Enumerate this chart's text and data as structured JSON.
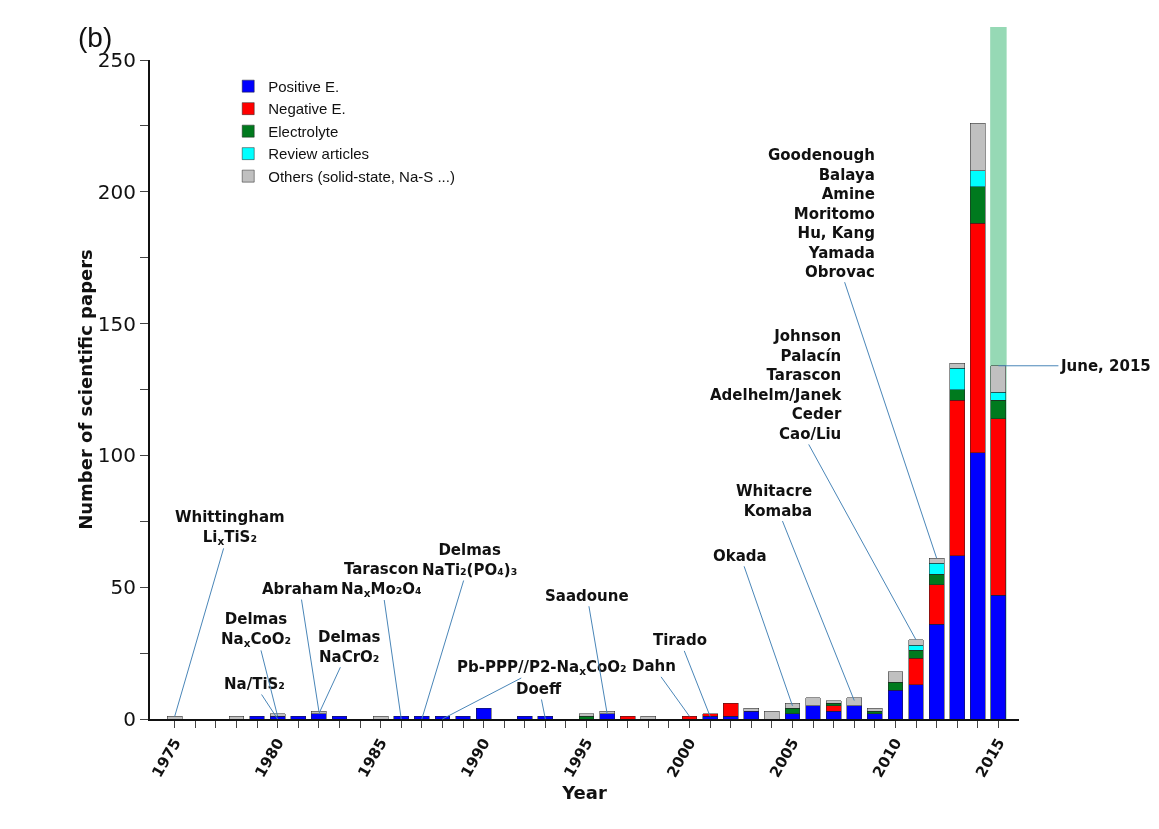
{
  "chart_data": {
    "type": "bar",
    "stacked": true,
    "xlabel": "Year",
    "ylabel": "Number of scientific papers",
    "x": [
      1975,
      1976,
      1977,
      1978,
      1979,
      1980,
      1981,
      1982,
      1983,
      1984,
      1985,
      1986,
      1987,
      1988,
      1989,
      1990,
      1991,
      1992,
      1993,
      1994,
      1995,
      1996,
      1997,
      1998,
      1999,
      2000,
      2001,
      2002,
      2003,
      2004,
      2005,
      2006,
      2007,
      2008,
      2009,
      2010,
      2011,
      2012,
      2013,
      2014,
      2015
    ],
    "series": [
      {
        "name": "Positive E.",
        "color": "#0000ff",
        "values": [
          null,
          null,
          null,
          null,
          1,
          1,
          1,
          2,
          1,
          null,
          null,
          1,
          1,
          1,
          1,
          4,
          null,
          1,
          1,
          null,
          null,
          2,
          null,
          null,
          null,
          null,
          1,
          1,
          3,
          null,
          2,
          5,
          3,
          5,
          2,
          11,
          13,
          36,
          62,
          101,
          47
        ]
      },
      {
        "name": "Negative E.",
        "color": "#ff0000",
        "values": [
          null,
          null,
          null,
          null,
          null,
          null,
          null,
          null,
          null,
          null,
          null,
          null,
          null,
          null,
          null,
          null,
          null,
          null,
          null,
          null,
          null,
          null,
          1,
          null,
          null,
          1,
          1,
          5,
          null,
          null,
          null,
          null,
          2,
          null,
          null,
          null,
          10,
          15,
          59,
          87,
          67
        ]
      },
      {
        "name": "Electrolyte",
        "color": "#007a1e",
        "values": [
          null,
          null,
          null,
          null,
          null,
          null,
          null,
          null,
          null,
          null,
          null,
          null,
          null,
          null,
          null,
          null,
          null,
          null,
          null,
          null,
          1,
          null,
          null,
          null,
          null,
          null,
          null,
          null,
          null,
          null,
          2,
          null,
          1,
          null,
          1,
          3,
          3,
          4,
          4,
          14,
          7
        ]
      },
      {
        "name": "Review articles",
        "color": "#00ffff",
        "values": [
          null,
          null,
          null,
          null,
          null,
          null,
          null,
          null,
          null,
          null,
          null,
          null,
          null,
          null,
          null,
          null,
          null,
          null,
          null,
          null,
          null,
          null,
          null,
          null,
          null,
          null,
          null,
          null,
          null,
          null,
          null,
          null,
          null,
          null,
          null,
          null,
          2,
          4,
          8,
          6,
          3
        ]
      },
      {
        "name": "Others (solid-state, Na-S ...)",
        "color": "#c0c0c0",
        "values": [
          1,
          null,
          null,
          1,
          null,
          1,
          null,
          1,
          null,
          null,
          1,
          null,
          null,
          null,
          null,
          null,
          null,
          null,
          null,
          null,
          1,
          1,
          null,
          1,
          null,
          null,
          null,
          null,
          1,
          3,
          2,
          3,
          1,
          3,
          1,
          4,
          2,
          2,
          2,
          18,
          10
        ]
      }
    ],
    "xlim": [
      1973.8,
      2016
    ],
    "xticks": [
      1975,
      {
        "value": 1976,
        "label": null
      },
      {
        "value": 1977,
        "label": null
      },
      {
        "value": 1978,
        "label": null
      },
      {
        "value": 1979,
        "label": null
      },
      1980,
      {
        "value": 1981,
        "label": null
      },
      {
        "value": 1982,
        "label": null
      },
      {
        "value": 1983,
        "label": null
      },
      {
        "value": 1984,
        "label": null
      },
      1985,
      {
        "value": 1986,
        "label": null
      },
      {
        "value": 1987,
        "label": null
      },
      {
        "value": 1988,
        "label": null
      },
      {
        "value": 1989,
        "label": null
      },
      1990,
      {
        "value": 1991,
        "label": null
      },
      {
        "value": 1992,
        "label": null
      },
      {
        "value": 1993,
        "label": null
      },
      {
        "value": 1994,
        "label": null
      },
      1995,
      {
        "value": 1996,
        "label": null
      },
      {
        "value": 1997,
        "label": null
      },
      {
        "value": 1998,
        "label": null
      },
      {
        "value": 1999,
        "label": null
      },
      2000,
      {
        "value": 2001,
        "label": null
      },
      {
        "value": 2002,
        "label": null
      },
      {
        "value": 2003,
        "label": null
      },
      {
        "value": 2004,
        "label": null
      },
      2005,
      {
        "value": 2006,
        "label": null
      },
      {
        "value": 2007,
        "label": null
      },
      {
        "value": 2008,
        "label": null
      },
      {
        "value": 2009,
        "label": null
      },
      2010,
      {
        "value": 2011,
        "label": null
      },
      {
        "value": 2012,
        "label": null
      },
      {
        "value": 2013,
        "label": null
      },
      {
        "value": 2014,
        "label": null
      },
      2015
    ],
    "ylim": [
      0,
      250
    ],
    "yticks": [
      0,
      {
        "value": 25,
        "label": null
      },
      50,
      {
        "value": 75,
        "label": null
      },
      100,
      {
        "value": 125,
        "label": null
      },
      150,
      {
        "value": 175,
        "label": null
      },
      200,
      {
        "value": 225,
        "label": null
      },
      250
    ],
    "grid": false,
    "legend": "top left",
    "bands": [
      {
        "axis": "x",
        "from": 2014.6,
        "to": 2015.4,
        "color": "#2db36b"
      }
    ],
    "annotations": [
      "(b)",
      {
        "text": "Whittingham\nLi$_{x}$TiS₂",
        "x": 1975,
        "y": 1
      },
      {
        "text": "Na/TiS₂",
        "x": 1980,
        "y": 0
      },
      {
        "text": "Delmas\nNa$_{x}$CoO₂",
        "x": 1980,
        "y": 1
      },
      {
        "text": "Abraham",
        "x": 1982,
        "y": 3
      },
      {
        "text": "Delmas\nNaCrO₂",
        "x": 1982,
        "y": 2
      },
      {
        "text": "Tarascon\nNa$_{x}$Mo₂O₄",
        "x": 1986,
        "y": 0
      },
      {
        "text": "Delmas\nNaTi₂(PO₄)₃",
        "x": 1987,
        "y": 0
      },
      {
        "text": "Pb-PPP//P2-Na$_{x}$CoO₂",
        "x": 1988,
        "y": 0
      },
      {
        "text": "Doeff",
        "x": 1993,
        "y": 0
      },
      {
        "text": "Saadoune",
        "x": 1996,
        "y": 2
      },
      {
        "text": "Dahn",
        "x": 2000,
        "y": 1
      },
      {
        "text": "Tirado",
        "x": 2001,
        "y": 1
      },
      {
        "text": "Okada",
        "x": 2005,
        "y": 5
      },
      {
        "text": "Whitacre\nKomaba",
        "x": 2008,
        "y": 7
      },
      {
        "text": "Johnson\nPalacín\nTarascon\nAdelhelm/Janek\nCeder\nCao/Liu",
        "x": 2011,
        "y": 30
      },
      {
        "text": "Goodenough\nBalaya\nAmine\nMoritomo\nHu, Kang\nYamada\nObrovac",
        "x": 2012,
        "y": 61
      },
      {
        "text": "June, 2015",
        "x": 2015,
        "y": 134
      }
    ]
  }
}
